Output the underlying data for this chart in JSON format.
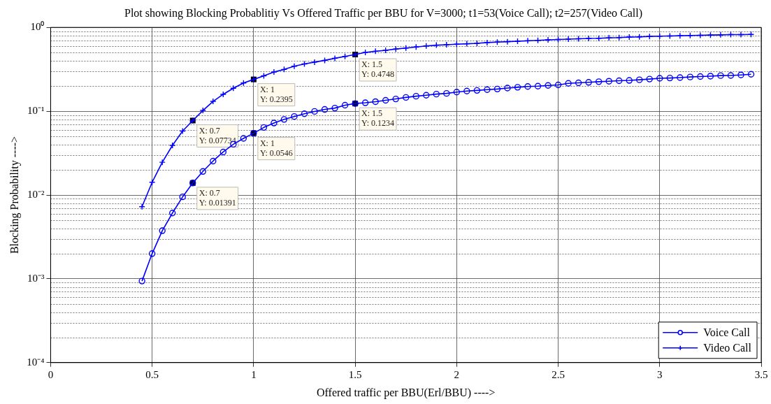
{
  "chart_data": {
    "type": "line",
    "title": "Plot showing Blocking Probablitiy Vs Offered Traffic per BBU for V=3000; t1=53(Voice Call); t2=257(Video Call)",
    "xlabel": "Offered traffic per BBU(Erl/BBU) ---->",
    "ylabel": "Blocking Probability ---->",
    "x": [
      0.45,
      0.5,
      0.55,
      0.6,
      0.65,
      0.7,
      0.75,
      0.8,
      0.85,
      0.9,
      0.95,
      1.0,
      1.05,
      1.1,
      1.15,
      1.2,
      1.25,
      1.3,
      1.35,
      1.4,
      1.45,
      1.5,
      1.55,
      1.6,
      1.65,
      1.7,
      1.75,
      1.8,
      1.85,
      1.9,
      1.95,
      2.0,
      2.05,
      2.1,
      2.15,
      2.2,
      2.25,
      2.3,
      2.35,
      2.4,
      2.45,
      2.5,
      2.55,
      2.6,
      2.65,
      2.7,
      2.75,
      2.8,
      2.85,
      2.9,
      2.95,
      3.0,
      3.05,
      3.1,
      3.15,
      3.2,
      3.25,
      3.3,
      3.35,
      3.4,
      3.45
    ],
    "series": [
      {
        "name": "Voice Call",
        "color": "#0000ff",
        "marker": "circle",
        "values": [
          0.00094,
          0.002,
          0.00375,
          0.0061,
          0.0095,
          0.01391,
          0.0191,
          0.0254,
          0.0326,
          0.0403,
          0.0474,
          0.0546,
          0.064,
          0.0722,
          0.0798,
          0.0865,
          0.0933,
          0.0994,
          0.105,
          0.109,
          0.118,
          0.1234,
          0.126,
          0.13,
          0.135,
          0.14,
          0.146,
          0.151,
          0.155,
          0.16,
          0.163,
          0.169,
          0.174,
          0.177,
          0.181,
          0.184,
          0.189,
          0.193,
          0.197,
          0.199,
          0.203,
          0.206,
          0.215,
          0.218,
          0.221,
          0.225,
          0.228,
          0.231,
          0.233,
          0.237,
          0.242,
          0.247,
          0.249,
          0.252,
          0.256,
          0.259,
          0.262,
          0.266,
          0.267,
          0.271,
          0.276
        ]
      },
      {
        "name": "Video Call",
        "color": "#0000ff",
        "marker": "cross",
        "values": [
          0.00724,
          0.0142,
          0.0246,
          0.0391,
          0.058,
          0.07734,
          0.102,
          0.131,
          0.159,
          0.188,
          0.217,
          0.2395,
          0.264,
          0.294,
          0.315,
          0.344,
          0.366,
          0.385,
          0.404,
          0.428,
          0.45,
          0.4748,
          0.503,
          0.519,
          0.532,
          0.552,
          0.567,
          0.584,
          0.6,
          0.614,
          0.622,
          0.63,
          0.638,
          0.646,
          0.659,
          0.667,
          0.675,
          0.684,
          0.692,
          0.701,
          0.71,
          0.718,
          0.724,
          0.731,
          0.738,
          0.742,
          0.751,
          0.756,
          0.766,
          0.77,
          0.78,
          0.785,
          0.789,
          0.795,
          0.8,
          0.805,
          0.81,
          0.815,
          0.82,
          0.82,
          0.825
        ]
      }
    ],
    "xlim": [
      0,
      3.5
    ],
    "xticks": [
      0,
      0.5,
      1,
      1.5,
      2,
      2.5,
      3,
      3.5
    ],
    "ylim": [
      0.0001,
      1
    ],
    "yticks": [
      {
        "value": 0.0001,
        "label": "10⁻⁴"
      },
      {
        "value": 0.001,
        "label": "10⁻³"
      },
      {
        "value": 0.01,
        "label": "10⁻²"
      },
      {
        "value": 0.1,
        "label": "10⁻¹"
      },
      {
        "value": 1,
        "label": "10⁰"
      }
    ],
    "log": "y",
    "grid": true,
    "legend": "bottom right",
    "line_style": "solid",
    "annotations": [
      {
        "text": "X: 0.7\nY: 0.01391",
        "x": 0.7,
        "y": 0.01391
      },
      {
        "text": "X: 1\nY: 0.0546",
        "x": 1,
        "y": 0.0546
      },
      {
        "text": "X: 1.5\nY: 0.1234",
        "x": 1.5,
        "y": 0.1234
      },
      {
        "text": "X: 0.7\nY: 0.07734",
        "x": 0.7,
        "y": 0.07734
      },
      {
        "text": "X: 1\nY: 0.2395",
        "x": 1,
        "y": 0.2395
      },
      {
        "text": "X: 1.5\nY: 0.4748",
        "x": 1.5,
        "y": 0.4748
      }
    ]
  }
}
